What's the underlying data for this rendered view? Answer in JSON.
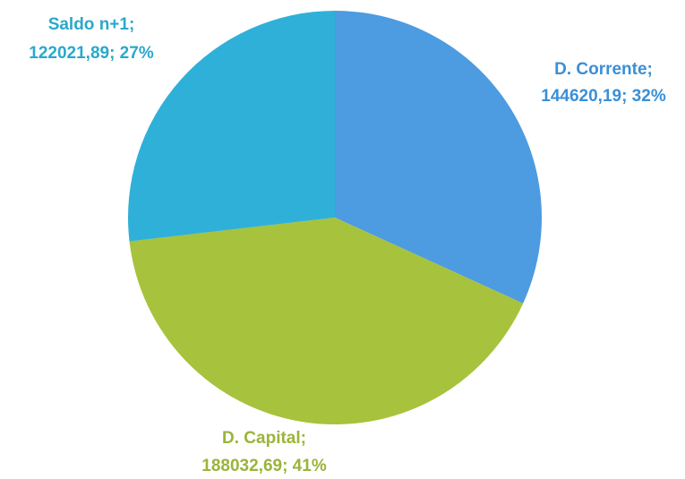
{
  "chart_data": {
    "type": "pie",
    "categories": [
      "D. Corrente;",
      "D. Capital;",
      "Saldo n+1;"
    ],
    "values": [
      144620.19,
      188032.69,
      122021.89
    ],
    "value_labels": [
      "144620,19; 32%",
      "188032,69; 41%",
      "122021,89; 27%"
    ],
    "colors": [
      "#4d9be0",
      "#a7c23c",
      "#2fb0d9"
    ],
    "label_colors": [
      "#3a8fd6",
      "#9ab43a",
      "#2aa8cc"
    ]
  }
}
